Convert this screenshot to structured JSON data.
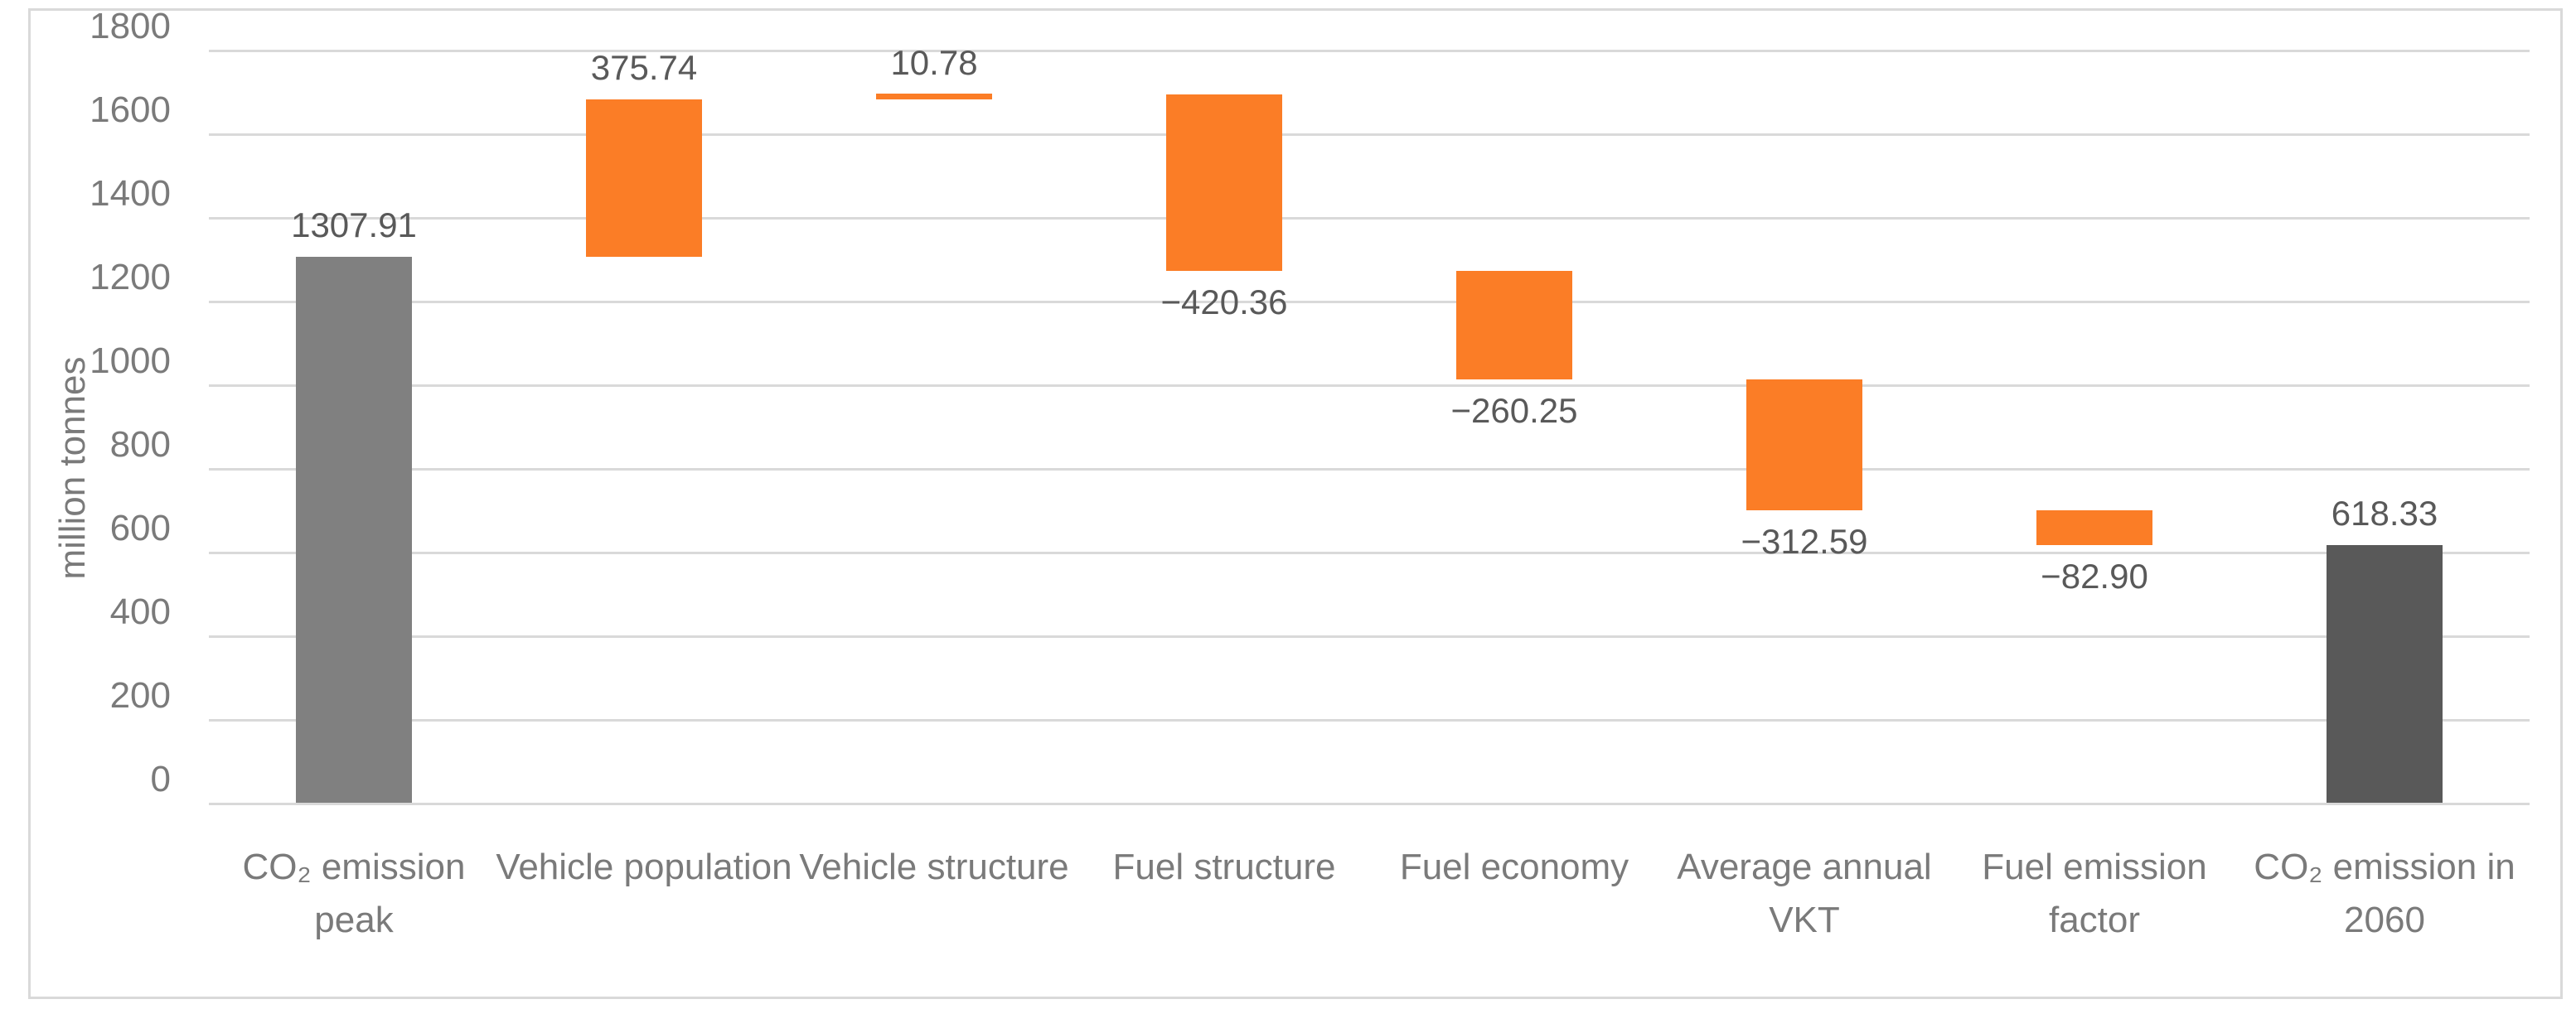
{
  "chart_data": {
    "type": "bar",
    "subtype": "waterfall",
    "title": "",
    "ylabel": "million tonnes",
    "xlabel": "",
    "ylim": [
      0,
      1800
    ],
    "grid": "horizontal",
    "legend": "none",
    "yticks": [
      {
        "value": 0,
        "label": "0"
      },
      {
        "value": 200,
        "label": "200"
      },
      {
        "value": 400,
        "label": "400"
      },
      {
        "value": 600,
        "label": "600"
      },
      {
        "value": 800,
        "label": "800"
      },
      {
        "value": 1000,
        "label": "1000"
      },
      {
        "value": 1200,
        "label": "1200"
      },
      {
        "value": 1400,
        "label": "1400"
      },
      {
        "value": 1600,
        "label": "1600"
      },
      {
        "value": 1800,
        "label": "1800"
      }
    ],
    "bars": [
      {
        "key": "co2-emission-peak",
        "category_lines": [
          "CO₂ emission peak"
        ],
        "value": 1307.91,
        "start": 0,
        "end": 1307.91,
        "role": "start-total",
        "label": "1307.91",
        "label_pos": "above"
      },
      {
        "key": "vehicle-population",
        "category_lines": [
          "Vehicle population"
        ],
        "value": 375.74,
        "start": 1307.91,
        "end": 1683.65,
        "role": "change",
        "label": "375.74",
        "label_pos": "above"
      },
      {
        "key": "vehicle-structure",
        "category_lines": [
          "Vehicle structure"
        ],
        "value": 10.78,
        "start": 1683.65,
        "end": 1694.43,
        "role": "change",
        "label": "10.78",
        "label_pos": "above"
      },
      {
        "key": "fuel-structure",
        "category_lines": [
          "Fuel structure"
        ],
        "value": -420.36,
        "start": 1694.43,
        "end": 1274.07,
        "role": "change",
        "label": "−420.36",
        "label_pos": "below"
      },
      {
        "key": "fuel-economy",
        "category_lines": [
          "Fuel economy"
        ],
        "value": -260.25,
        "start": 1274.07,
        "end": 1013.82,
        "role": "change",
        "label": "−260.25",
        "label_pos": "below"
      },
      {
        "key": "average-annual-vkt",
        "category_lines": [
          "Average annual",
          "VKT"
        ],
        "value": -312.59,
        "start": 1013.82,
        "end": 701.23,
        "role": "change",
        "label": "−312.59",
        "label_pos": "below"
      },
      {
        "key": "fuel-emission-factor",
        "category_lines": [
          "Fuel emission",
          "factor"
        ],
        "value": -82.9,
        "start": 701.23,
        "end": 618.33,
        "role": "change",
        "label": "−82.90",
        "label_pos": "below"
      },
      {
        "key": "co2-emission-in-2060",
        "category_lines": [
          "CO₂ emission in",
          "2060"
        ],
        "value": 618.33,
        "start": 0,
        "end": 618.33,
        "role": "end-total",
        "label": "618.33",
        "label_pos": "above"
      }
    ],
    "colors": {
      "start_total_bar": "#808080",
      "change_bar": "#FB7D26",
      "end_total_bar": "#595959",
      "gridline": "#D9D9D9",
      "axis_text": "#7A7A7A",
      "data_label_text": "#595959",
      "chart_border": "#D9D9D9",
      "background": "#FFFFFF"
    }
  }
}
